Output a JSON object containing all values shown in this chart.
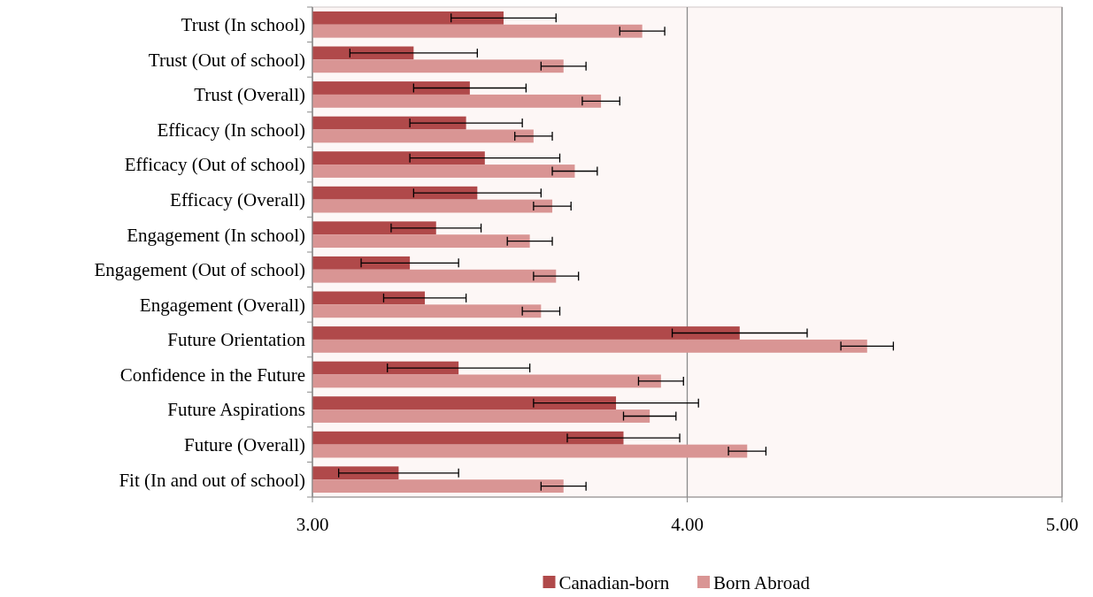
{
  "chart_data": {
    "type": "bar",
    "orientation": "horizontal",
    "categories": [
      "Trust (In school)",
      "Trust (Out of school)",
      "Trust (Overall)",
      "Efficacy (In school)",
      "Efficacy (Out of school)",
      "Efficacy (Overall)",
      "Engagement (In school)",
      "Engagement (Out of school)",
      "Engagement (Overall)",
      "Future Orientation",
      "Confidence in the Future",
      "Future Aspirations",
      "Future (Overall)",
      "Fit (In and out of school)"
    ],
    "series": [
      {
        "name": "Canadian-born",
        "color": "#b0494a",
        "values": [
          3.51,
          3.27,
          3.42,
          3.41,
          3.46,
          3.44,
          3.33,
          3.26,
          3.3,
          4.14,
          3.39,
          3.81,
          3.83,
          3.23
        ],
        "errors": [
          0.14,
          0.17,
          0.15,
          0.15,
          0.2,
          0.17,
          0.12,
          0.13,
          0.11,
          0.18,
          0.19,
          0.22,
          0.15,
          0.16
        ]
      },
      {
        "name": "Born Abroad",
        "color": "#d99594",
        "values": [
          3.88,
          3.67,
          3.77,
          3.59,
          3.7,
          3.64,
          3.58,
          3.65,
          3.61,
          4.48,
          3.93,
          3.9,
          4.16,
          3.67
        ],
        "errors": [
          0.06,
          0.06,
          0.05,
          0.05,
          0.06,
          0.05,
          0.06,
          0.06,
          0.05,
          0.07,
          0.06,
          0.07,
          0.05,
          0.06
        ]
      }
    ],
    "xlim": [
      3,
      5
    ],
    "xticks": [
      {
        "value": 3,
        "label": "3.00"
      },
      {
        "value": 4,
        "label": "4.00"
      },
      {
        "value": 5,
        "label": "5.00"
      }
    ],
    "grid": "x",
    "legend": "bottom"
  }
}
